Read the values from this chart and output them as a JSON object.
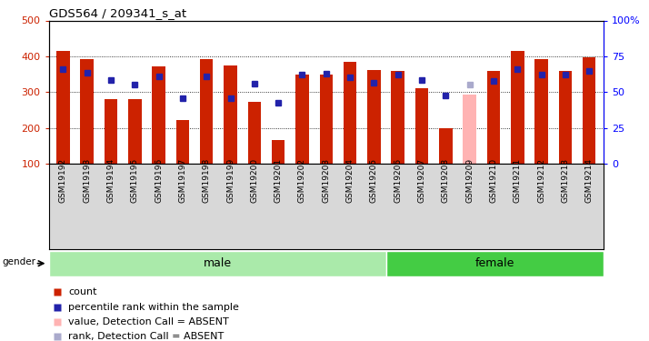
{
  "title": "GDS564 / 209341_s_at",
  "samples": [
    "GSM19192",
    "GSM19193",
    "GSM19194",
    "GSM19195",
    "GSM19196",
    "GSM19197",
    "GSM19198",
    "GSM19199",
    "GSM19200",
    "GSM19201",
    "GSM19202",
    "GSM19203",
    "GSM19204",
    "GSM19205",
    "GSM19206",
    "GSM19207",
    "GSM19208",
    "GSM19209",
    "GSM19210",
    "GSM19211",
    "GSM19212",
    "GSM19213",
    "GSM19214"
  ],
  "count_values": [
    415,
    393,
    280,
    280,
    372,
    222,
    393,
    375,
    272,
    165,
    348,
    348,
    385,
    362,
    360,
    312,
    200,
    293,
    360,
    416,
    393,
    358,
    398
  ],
  "rank_values": [
    365,
    355,
    333,
    322,
    344,
    283,
    344,
    283,
    323,
    270,
    348,
    352,
    342,
    325,
    348,
    333,
    290,
    322,
    330,
    365,
    348,
    348,
    358
  ],
  "absent_mask": [
    false,
    false,
    false,
    false,
    false,
    false,
    false,
    false,
    false,
    false,
    false,
    false,
    false,
    false,
    false,
    false,
    false,
    true,
    false,
    false,
    false,
    false,
    false
  ],
  "gender": [
    "male",
    "male",
    "male",
    "male",
    "male",
    "male",
    "male",
    "male",
    "male",
    "male",
    "male",
    "male",
    "male",
    "male",
    "female",
    "female",
    "female",
    "female",
    "female",
    "female",
    "female",
    "female",
    "female"
  ],
  "ylim_left": [
    100,
    500
  ],
  "ylim_right": [
    0,
    100
  ],
  "yticks_left": [
    100,
    200,
    300,
    400,
    500
  ],
  "ytick_labels_left": [
    "100",
    "200",
    "300",
    "400",
    "500"
  ],
  "yticks_right": [
    0,
    25,
    50,
    75,
    100
  ],
  "ytick_labels_right": [
    "0",
    "25",
    "50",
    "75",
    "100%"
  ],
  "gridlines": [
    200,
    300,
    400
  ],
  "bar_color_normal": "#cc2200",
  "bar_color_absent": "#ffb3b3",
  "rank_color_normal": "#2222aa",
  "rank_color_absent": "#aaaacc",
  "bar_width": 0.55,
  "male_color": "#aaeaaa",
  "female_color": "#44cc44",
  "xtick_bg": "#d8d8d8",
  "legend_items": [
    {
      "color": "#cc2200",
      "marker": "s",
      "label": "count"
    },
    {
      "color": "#2222aa",
      "marker": "s",
      "label": "percentile rank within the sample"
    },
    {
      "color": "#ffb3b3",
      "marker": "s",
      "label": "value, Detection Call = ABSENT"
    },
    {
      "color": "#aaaacc",
      "marker": "s",
      "label": "rank, Detection Call = ABSENT"
    }
  ]
}
